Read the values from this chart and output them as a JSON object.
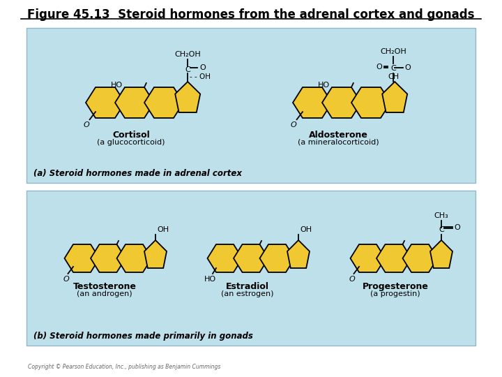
{
  "title": "Figure 45.13  Steroid hormones from the adrenal cortex and gonads",
  "title_fontsize": 12,
  "title_color": "#000000",
  "bg_color": "#ffffff",
  "panel_bg": "#bde0ea",
  "panel_a_label": "(a) Steroid hormones made in adrenal cortex",
  "panel_b_label": "(b) Steroid hormones made primarily in gonads",
  "copyright": "Copyright © Pearson Education, Inc., publishing as Benjamin Cummings",
  "yellow_fill": "#f0c832",
  "outline_color": "#000000",
  "line_width": 1.3
}
